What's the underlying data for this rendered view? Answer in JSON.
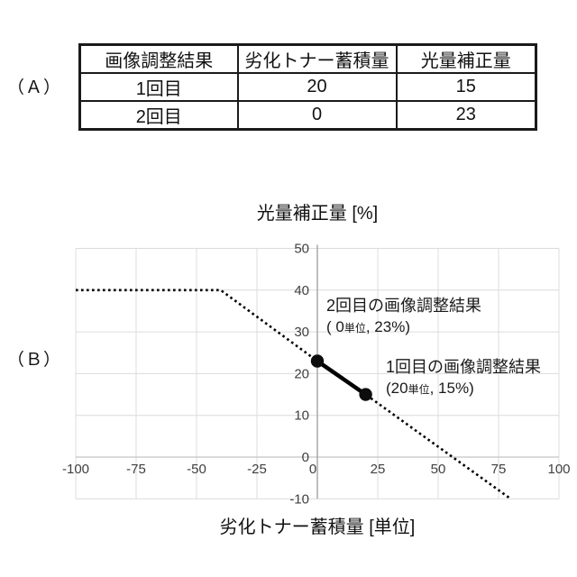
{
  "labels": {
    "section_a": "（Ａ）",
    "section_b": "（Ｂ）"
  },
  "table": {
    "headers": [
      "画像調整結果",
      "劣化トナー蓄積量",
      "光量補正量"
    ],
    "rows": [
      [
        "1回目",
        "20",
        "15"
      ],
      [
        "2回目",
        "0",
        "23"
      ]
    ]
  },
  "chart_data": {
    "type": "line",
    "title": "光量補正量 [%]",
    "xlabel": "劣化トナー蓄積量 [単位]",
    "ylabel": "光量補正量 [%]",
    "xlim": [
      -100,
      100
    ],
    "ylim": [
      -10,
      50
    ],
    "x_ticks": [
      -100,
      -75,
      -50,
      -25,
      0,
      25,
      50,
      75,
      100
    ],
    "y_ticks": [
      50,
      40,
      30,
      20,
      10,
      0,
      -10
    ],
    "grid": true,
    "legend": "none",
    "series": [
      {
        "name": "correction-characteristic-dotted",
        "style": "dotted",
        "points": [
          [
            -100,
            40
          ],
          [
            -40,
            40
          ],
          [
            0,
            23
          ],
          [
            20,
            15
          ],
          [
            80,
            -10
          ]
        ]
      },
      {
        "name": "adjustment-interval-solid",
        "style": "solid",
        "points": [
          [
            0,
            23
          ],
          [
            20,
            15
          ]
        ]
      }
    ],
    "markers": [
      {
        "x": 0,
        "y": 23
      },
      {
        "x": 20,
        "y": 15
      }
    ],
    "annotations": [
      {
        "title": "2回目の画像調整結果",
        "coord_pre": "( 0",
        "coord_unit": "単位",
        "coord_post": ", 23%)",
        "point": [
          0,
          23
        ]
      },
      {
        "title": "1回目の画像調整結果",
        "coord_pre": "(20",
        "coord_unit": "単位",
        "coord_post": ", 15%)",
        "point": [
          20,
          15
        ]
      }
    ],
    "colors": {
      "line_color": "#000000",
      "marker_color": "#0d0d0d",
      "grid_color": "#dcdcdc",
      "zero_line_color": "#c4c4c4",
      "axis_color": "#a8a8a8",
      "tick_label_color": "#3f3f3f"
    }
  }
}
